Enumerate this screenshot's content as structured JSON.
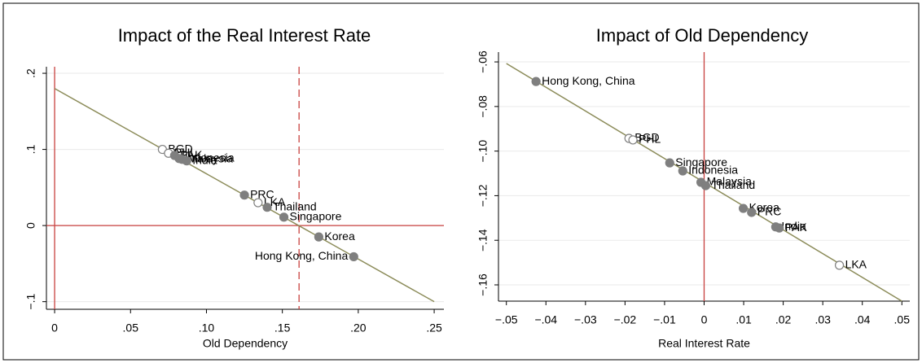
{
  "chart_data": [
    {
      "type": "scatter",
      "title": "Impact of the Real Interest Rate",
      "x_label": "Old Dependency",
      "x": [
        0.071,
        0.075,
        0.079,
        0.082,
        0.084,
        0.087,
        0.125,
        0.134,
        0.14,
        0.151,
        0.174,
        0.197
      ],
      "values": [
        0.1,
        0.095,
        0.092,
        0.088,
        0.087,
        0.085,
        0.04,
        0.03,
        0.024,
        0.011,
        -0.015,
        -0.041
      ],
      "point_labels": [
        "BGD",
        "PHL",
        "PAK",
        "Indonesia",
        "Malaysia",
        "India",
        "PRC",
        "LKA",
        "Thailand",
        "Singapore",
        "Korea",
        "Hong Kong, China"
      ],
      "markers": [
        "hollow",
        "hollow",
        "filled",
        "filled",
        "filled",
        "filled",
        "filled",
        "hollow",
        "filled",
        "filled",
        "filled",
        "filled"
      ],
      "color": "#7f7f7f",
      "fit_line": {
        "x": [
          0,
          0.25
        ],
        "y": [
          0.18,
          -0.1
        ],
        "color": "#8c8c5a"
      },
      "reference_lines": [
        {
          "axis": "x",
          "value": 0,
          "style": "solid"
        },
        {
          "axis": "y",
          "value": 0,
          "style": "solid"
        },
        {
          "axis": "x",
          "value": 0.161,
          "style": "dashed"
        }
      ],
      "reference_color": "#c8413f",
      "xlim": [
        -0.0054,
        0.2564
      ],
      "ylim": [
        -0.11,
        0.2086
      ],
      "xticks": [
        0,
        {
          "value": 0.05,
          "label": ".05"
        },
        {
          "value": 0.1,
          "label": ".10"
        },
        {
          "value": 0.15,
          "label": ".15"
        },
        {
          "value": 0.2,
          "label": ".20"
        },
        {
          "value": 0.25,
          "label": ".25"
        }
      ],
      "yticks": [
        {
          "value": -0.1,
          "label": "−.1"
        },
        0,
        {
          "value": 0.1,
          "label": ".1"
        },
        {
          "value": 0.2,
          "label": ".2"
        }
      ],
      "grid": true
    },
    {
      "type": "scatter",
      "title": "Impact of Old Dependency",
      "x_label": "Real Interest Rate",
      "x": [
        -0.0425,
        -0.019,
        -0.018,
        -0.0087,
        -0.0054,
        -0.0008,
        0.0004,
        0.0099,
        0.012,
        0.0181,
        0.019,
        0.0342
      ],
      "values": [
        -0.0688,
        -0.0943,
        -0.095,
        -0.1053,
        -0.1089,
        -0.114,
        -0.1155,
        -0.1257,
        -0.1275,
        -0.134,
        -0.1345,
        -0.1512
      ],
      "point_labels": [
        "Hong Kong, China",
        "BGD",
        "PHL",
        "Singapore",
        "Indonesia",
        "Malaysia",
        "Thailand",
        "Korea",
        "PRC",
        "India",
        "PAK",
        "LKA"
      ],
      "markers": [
        "filled",
        "hollow",
        "hollow",
        "filled",
        "filled",
        "filled",
        "filled",
        "filled",
        "filled",
        "filled",
        "filled",
        "hollow"
      ],
      "color": "#7f7f7f",
      "fit_line": {
        "x": [
          -0.05,
          0.05
        ],
        "y": [
          -0.0607,
          -0.1673
        ],
        "color": "#8c8c5a"
      },
      "reference_lines": [
        {
          "axis": "x",
          "value": 0,
          "style": "solid"
        }
      ],
      "reference_color": "#c8413f",
      "xlim": [
        -0.052,
        0.052
      ],
      "ylim": [
        -0.1673,
        -0.0556
      ],
      "xticks": [
        {
          "value": -0.05,
          "label": "−.05"
        },
        {
          "value": -0.04,
          "label": "−.04"
        },
        {
          "value": -0.03,
          "label": "−.03"
        },
        {
          "value": -0.02,
          "label": "−.02"
        },
        {
          "value": -0.01,
          "label": "−.01"
        },
        0,
        {
          "value": 0.01,
          "label": ".01"
        },
        {
          "value": 0.02,
          "label": ".02"
        },
        {
          "value": 0.03,
          "label": ".03"
        },
        {
          "value": 0.04,
          "label": ".04"
        },
        {
          "value": 0.05,
          "label": ".05"
        }
      ],
      "yticks": [
        {
          "value": -0.16,
          "label": "−.16"
        },
        {
          "value": -0.14,
          "label": "−.14"
        },
        {
          "value": -0.12,
          "label": "−.12"
        },
        {
          "value": -0.1,
          "label": "−.10"
        },
        {
          "value": -0.08,
          "label": "−.08"
        },
        {
          "value": -0.06,
          "label": "−.06"
        }
      ],
      "grid": true
    }
  ]
}
